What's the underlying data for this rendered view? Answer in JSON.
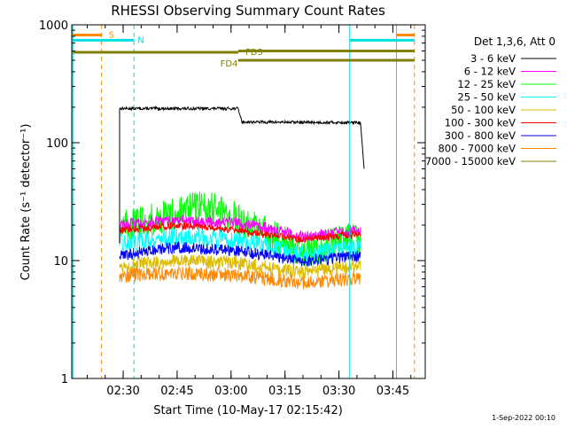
{
  "chart_data": {
    "type": "line",
    "title": "RHESSI Observing Summary Count Rates",
    "xlabel": "Start Time (10-May-17 02:15:42)",
    "ylabel": "Count Rate (s⁻¹ detector⁻¹)",
    "y_scale": "log",
    "ylim": [
      1,
      1000
    ],
    "xlim": [
      "02:15:42",
      "03:54:00"
    ],
    "x_unit": "minutes after 02:00",
    "x_ticks": [
      "02:30",
      "02:45",
      "03:00",
      "03:15",
      "03:30",
      "03:45"
    ],
    "y_ticks": [
      "1",
      "10",
      "100",
      "1000"
    ],
    "grid": false,
    "legend_title": "Det 1,3,6, Att 0",
    "legend_position": "right",
    "footer_date": "1-Sep-2022 00:10",
    "data_start": "02:29:00",
    "data_end": "03:37:00",
    "series": [
      {
        "name": "3 - 6 keV",
        "color": "#000000",
        "x": [
          "02:29",
          "03:02",
          "03:03",
          "03:36",
          "03:37"
        ],
        "y": [
          195,
          195,
          150,
          148,
          60
        ]
      },
      {
        "name": "6 - 12 keV",
        "color": "#ff00ff",
        "x": [
          "02:29",
          "02:45",
          "03:02",
          "03:20",
          "03:36"
        ],
        "y": [
          20,
          22,
          21,
          16,
          18
        ]
      },
      {
        "name": "12 - 25 keV",
        "color": "#00ff00",
        "x": [
          "02:29",
          "02:45",
          "02:52",
          "03:00",
          "03:20",
          "03:36"
        ],
        "y": [
          19,
          25,
          30,
          24,
          12,
          16
        ]
      },
      {
        "name": "25 - 50 keV",
        "color": "#00ffff",
        "x": [
          "02:29",
          "02:45",
          "03:02",
          "03:20",
          "03:36"
        ],
        "y": [
          14,
          16,
          15,
          11,
          13
        ]
      },
      {
        "name": "50 - 100 keV",
        "color": "#ddbb00",
        "x": [
          "02:29",
          "02:45",
          "03:02",
          "03:20",
          "03:36"
        ],
        "y": [
          9,
          10,
          9.5,
          8,
          9
        ]
      },
      {
        "name": "100 - 300 keV",
        "color": "#ff0000",
        "x": [
          "02:29",
          "02:45",
          "03:02",
          "03:20",
          "03:36"
        ],
        "y": [
          18,
          20,
          18,
          15,
          17
        ]
      },
      {
        "name": "300 - 800 keV",
        "color": "#0000ff",
        "x": [
          "02:29",
          "02:45",
          "03:02",
          "03:20",
          "03:36"
        ],
        "y": [
          11,
          13,
          12,
          10,
          11
        ]
      },
      {
        "name": "800 - 7000 keV",
        "color": "#ff8800",
        "x": [
          "02:29",
          "02:45",
          "03:02",
          "03:20",
          "03:36"
        ],
        "y": [
          7.5,
          7.8,
          7.5,
          6.5,
          7
        ]
      },
      {
        "name": "7000 - 15000 keV",
        "color": "#808000",
        "x": [],
        "y": []
      }
    ],
    "vertical_markers": [
      {
        "time": "02:16",
        "color": "#00e0e0",
        "style": "solid"
      },
      {
        "time": "02:24",
        "color": "#ff8800",
        "style": "dashed"
      },
      {
        "time": "02:33",
        "color": "#00e0e0",
        "style": "dashed"
      },
      {
        "time": "03:33",
        "color": "#00e0e0",
        "style": "solid"
      },
      {
        "time": "03:46",
        "color": "#ff8800",
        "style": "solid"
      },
      {
        "time": "03:51",
        "color": "#ff8800",
        "style": "dashed"
      }
    ],
    "flags": [
      {
        "label": "S",
        "color": "#ff8800",
        "x_from": "02:16",
        "x_to": "02:24",
        "level": 820,
        "label_at": "02:26"
      },
      {
        "label": "S",
        "color": "#ff8800",
        "x_from": "03:46",
        "x_to": "03:51",
        "level": 820
      },
      {
        "label": "N",
        "color": "#00e0e0",
        "x_from": "02:16",
        "x_to": "02:33",
        "level": 740,
        "label_at": "02:34"
      },
      {
        "label": "N",
        "color": "#00e0e0",
        "x_from": "03:33",
        "x_to": "03:51",
        "level": 740
      },
      {
        "label": "FD3",
        "color": "#808000",
        "x_from": "02:16",
        "x_to": "03:02",
        "level": 585,
        "label_at": "03:04"
      },
      {
        "label": "FD3",
        "color": "#808000",
        "x_from": "03:02",
        "x_to": "03:51",
        "level": 600
      },
      {
        "label": "FD4",
        "color": "#808000",
        "x_from": "03:02",
        "x_to": "03:51",
        "level": 500,
        "label_at": "02:57"
      }
    ]
  }
}
